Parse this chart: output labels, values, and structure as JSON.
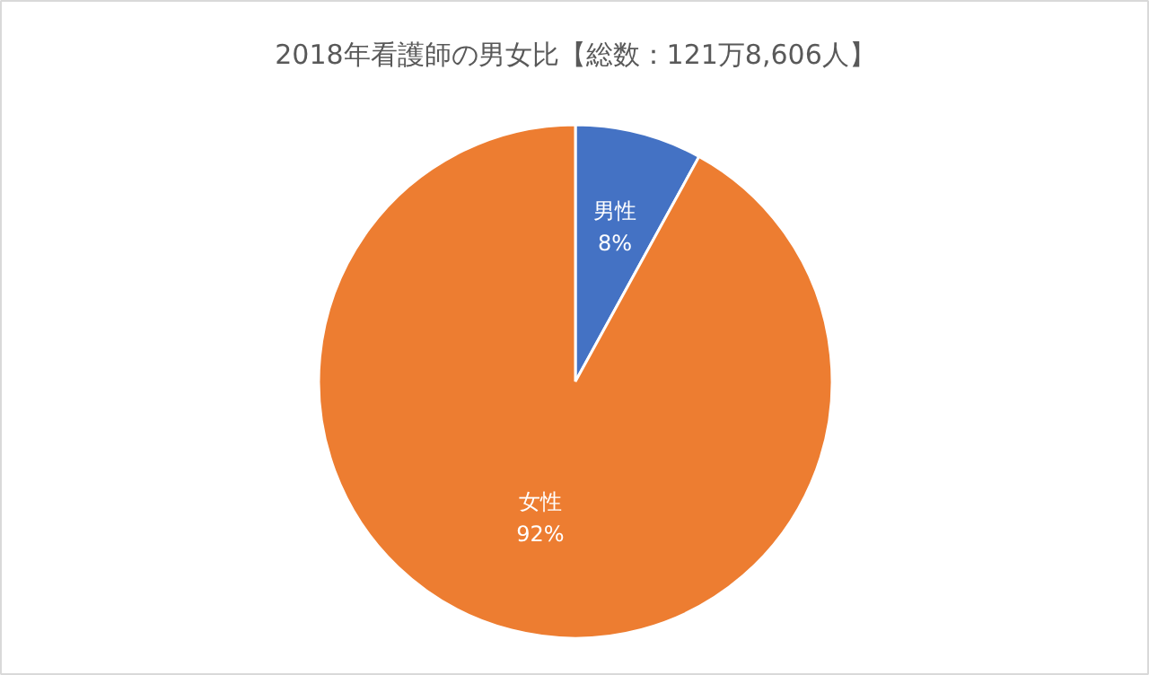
{
  "chart_data": {
    "type": "pie",
    "title": "2018年看護師の男女比【総数：121万8,606人】",
    "categories": [
      "男性",
      "女性"
    ],
    "values": [
      8,
      92
    ],
    "colors": [
      "#4472c4",
      "#ed7d31"
    ],
    "value_labels": [
      "8%",
      "92%"
    ],
    "legend": false
  }
}
